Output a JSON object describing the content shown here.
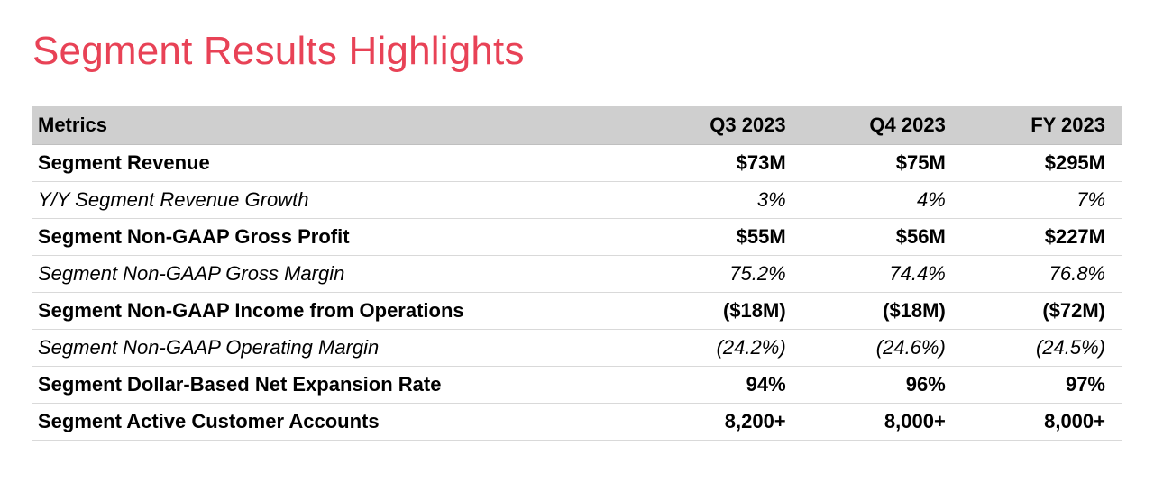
{
  "title": {
    "text": "Segment Results Highlights",
    "color": "#e84256",
    "fontsize_pt": 33
  },
  "table": {
    "header_bg": "#cfcfcf",
    "border_color": "#d9d9d9",
    "header_border_color": "#bfbfbf",
    "font_family": "Helvetica Neue, Helvetica, Arial, sans-serif",
    "cell_fontsize_pt": 16,
    "columns": {
      "metric_header": "Metrics",
      "periods": [
        "Q3 2023",
        "Q4 2023",
        "FY 2023"
      ],
      "widths_pct": [
        56,
        14.7,
        14.7,
        14.7
      ],
      "value_align": "right"
    },
    "rows": [
      {
        "style": "bold",
        "metric": "Segment Revenue",
        "values": [
          "$73M",
          "$75M",
          "$295M"
        ]
      },
      {
        "style": "italic",
        "metric": "Y/Y Segment Revenue Growth",
        "values": [
          "3%",
          "4%",
          "7%"
        ]
      },
      {
        "style": "bold",
        "metric": "Segment Non-GAAP Gross Profit",
        "values": [
          "$55M",
          "$56M",
          "$227M"
        ]
      },
      {
        "style": "italic",
        "metric": "Segment Non-GAAP Gross Margin",
        "values": [
          "75.2%",
          "74.4%",
          "76.8%"
        ]
      },
      {
        "style": "bold",
        "metric": "Segment Non-GAAP Income from Operations",
        "values": [
          "($18M)",
          "($18M)",
          "($72M)"
        ]
      },
      {
        "style": "italic",
        "metric": "Segment Non-GAAP Operating Margin",
        "values": [
          "(24.2%)",
          "(24.6%)",
          "(24.5%)"
        ]
      },
      {
        "style": "bold",
        "metric": "Segment Dollar-Based Net Expansion Rate",
        "values": [
          "94%",
          "96%",
          "97%"
        ]
      },
      {
        "style": "bold",
        "metric": "Segment Active Customer Accounts",
        "values": [
          "8,200+",
          "8,000+",
          "8,000+"
        ]
      }
    ]
  }
}
